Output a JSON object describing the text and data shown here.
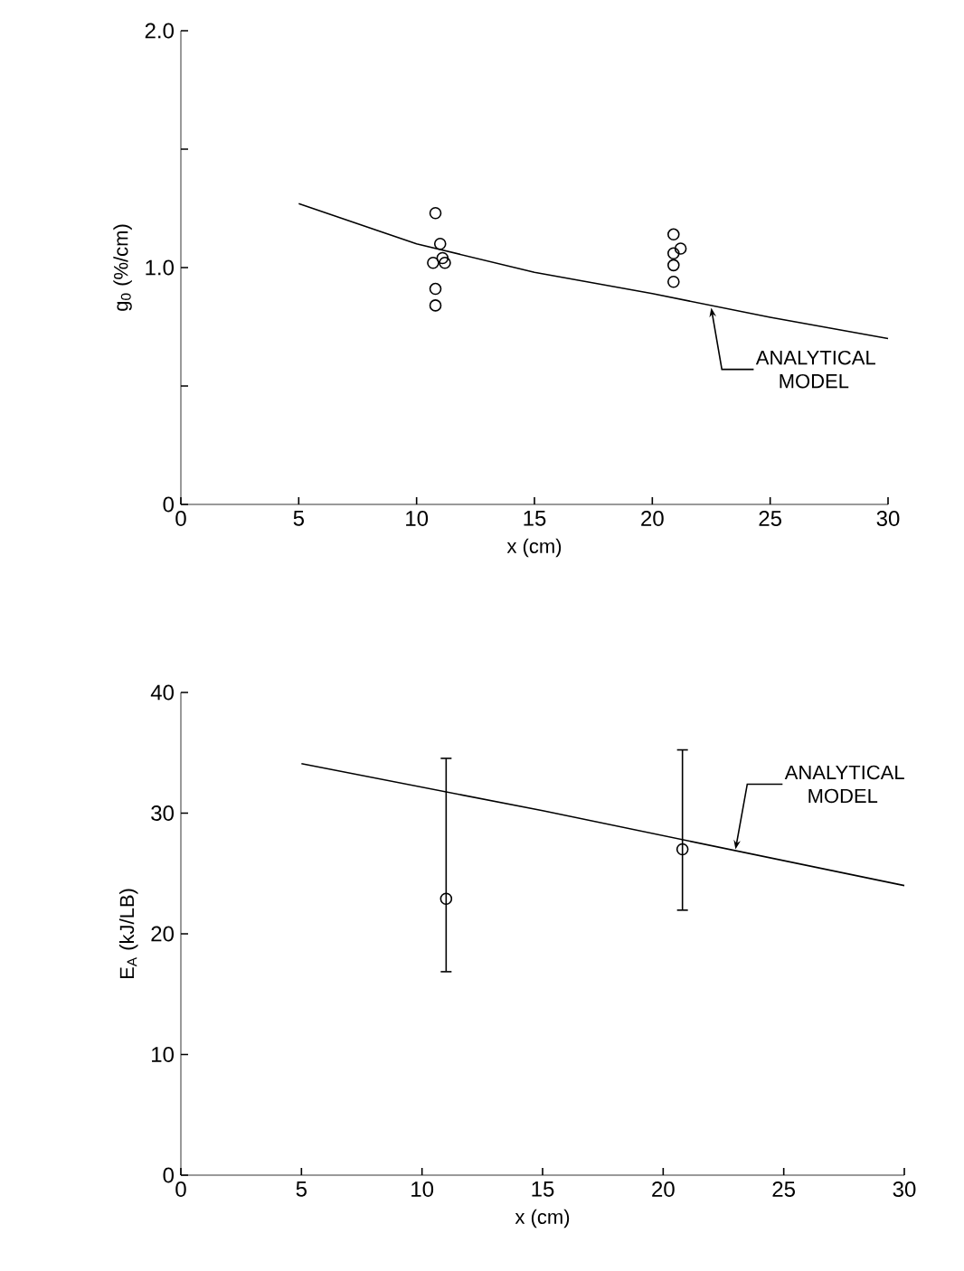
{
  "chart_data": [
    {
      "type": "scatter",
      "xlabel": "x (cm)",
      "ylabel": "g$_{0}$ (%/cm)",
      "xlim": [
        0,
        30
      ],
      "xticks": [
        0,
        5,
        10,
        15,
        20,
        25,
        30
      ],
      "ylim": [
        0,
        2
      ],
      "yticks": [
        0,
        {
          "value": 0.5,
          "label": null
        },
        {
          "value": 1,
          "label": "1.0"
        },
        {
          "value": 1.5,
          "label": null
        },
        {
          "value": 2,
          "label": "2.0"
        }
      ],
      "series": [
        {
          "type": "line",
          "color": "#000000",
          "marker": "none",
          "x": [
            5,
            10,
            15,
            20,
            25,
            30
          ],
          "values": [
            1.27,
            1.1,
            0.98,
            0.89,
            0.79,
            0.7
          ]
        },
        {
          "type": "scatter",
          "color": "#000000",
          "marker": "circle",
          "x": [
            10.8,
            11,
            11.1,
            10.7,
            11.2,
            10.8,
            10.8,
            20.9,
            21.2,
            20.9,
            20.9,
            20.9
          ],
          "values": [
            1.23,
            1.1,
            1.04,
            1.02,
            1.02,
            0.91,
            0.84,
            1.14,
            1.08,
            1.06,
            1.01,
            0.94
          ]
        }
      ],
      "annotations": [
        {
          "text": "ANALYTICAL MODEL",
          "x": 22.5,
          "y": 0.83
        }
      ]
    },
    {
      "type": "scatter",
      "xlabel": "x (cm)",
      "ylabel": "E$_{A}$ (kJ/LB)",
      "xlim": [
        0,
        30
      ],
      "xticks": [
        0,
        5,
        10,
        15,
        20,
        25,
        30
      ],
      "ylim": [
        0,
        40
      ],
      "yticks": [
        0,
        10,
        20,
        30,
        40
      ],
      "series": [
        {
          "type": "line",
          "color": "#000000",
          "marker": "none",
          "x": [
            5,
            15,
            30
          ],
          "values": [
            34.1,
            30.2,
            24.0
          ]
        },
        {
          "type": "scatter",
          "color": "#000000",
          "marker": "circle",
          "x": [
            11,
            20.8
          ],
          "values": [
            22.9,
            27.0
          ],
          "errors": [
            [
              16.8,
              34.6
            ],
            [
              21.9,
              35.3
            ]
          ]
        }
      ],
      "annotations": [
        {
          "text": "ANALYTICAL MODEL",
          "x": 23,
          "y": 27
        }
      ]
    }
  ]
}
